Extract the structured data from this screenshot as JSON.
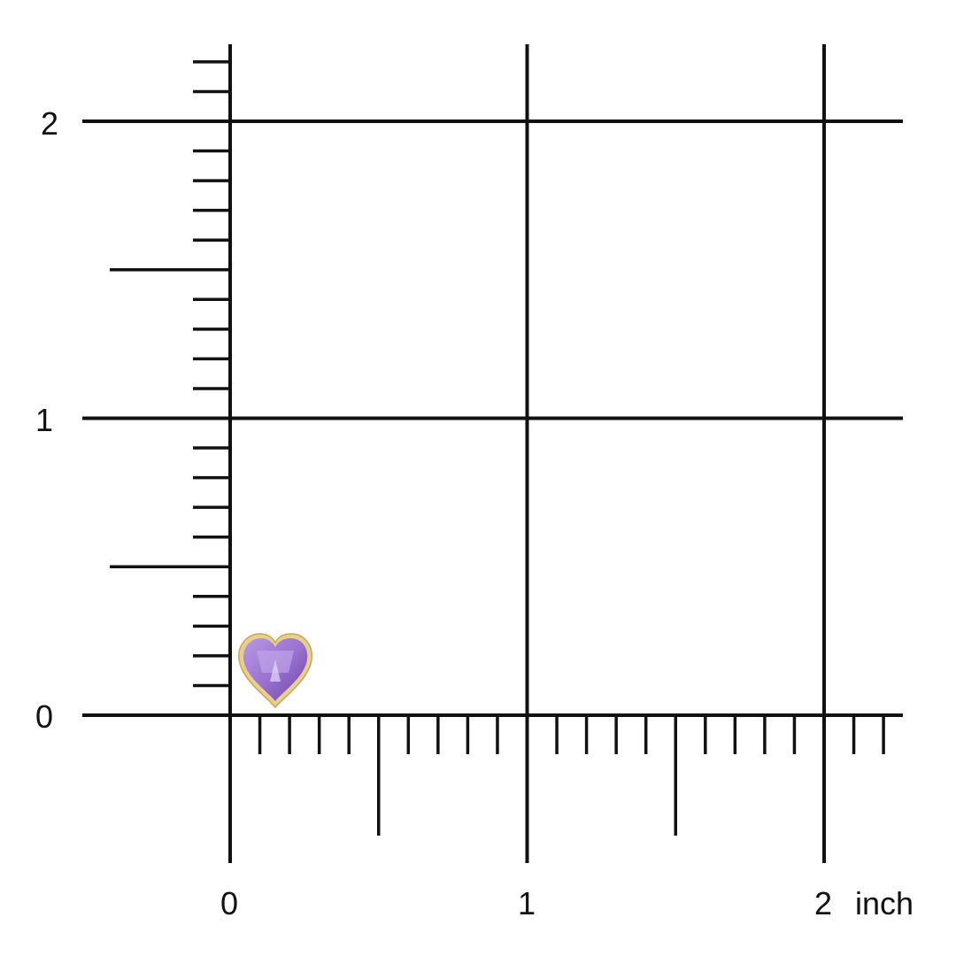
{
  "scale": {
    "unit_label": "inch",
    "x_labels": [
      "0",
      "1",
      "2"
    ],
    "y_labels": [
      "0",
      "1",
      "2"
    ],
    "minor_tick_step_inch": 0.1,
    "half_tick_step_inch": 0.5,
    "line_color": "#111111"
  },
  "product": {
    "name": "heart-amethyst-bezel-stud",
    "gem_color": "#9a72d0",
    "bezel_color": "#e2c27a"
  }
}
